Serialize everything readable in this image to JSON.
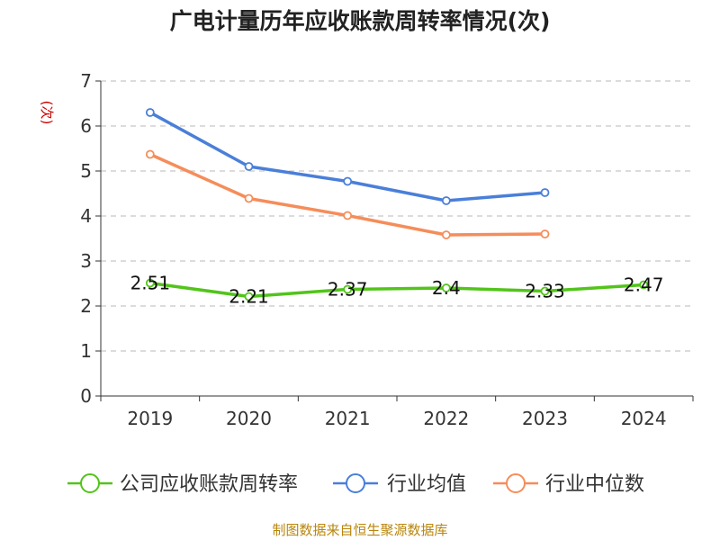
{
  "chart_data": {
    "type": "line",
    "title": "广电计量历年应收账款周转率情况(次)",
    "ylabel": "(次)",
    "xlabel": "",
    "categories": [
      "2019",
      "2020",
      "2021",
      "2022",
      "2023",
      "2024"
    ],
    "ylim": [
      0,
      7
    ],
    "yticks": [
      "0",
      "1",
      "2",
      "3",
      "4",
      "5",
      "6",
      "7"
    ],
    "grid": true,
    "legend_position": "bottom",
    "series": [
      {
        "name": "公司应收账款周转率",
        "color": "#52c41a",
        "values": [
          2.51,
          2.21,
          2.37,
          2.4,
          2.33,
          2.47
        ],
        "labels": [
          "2.51",
          "2.21",
          "2.37",
          "2.4",
          "2.33",
          "2.47"
        ]
      },
      {
        "name": "行业均值",
        "color": "#4a7fd9",
        "values": [
          6.3,
          5.1,
          4.77,
          4.34,
          4.52,
          null
        ]
      },
      {
        "name": "行业中位数",
        "color": "#f58d5a",
        "values": [
          5.37,
          4.39,
          4.01,
          3.58,
          3.6,
          null
        ]
      }
    ],
    "source": "制图数据来自恒生聚源数据库"
  }
}
